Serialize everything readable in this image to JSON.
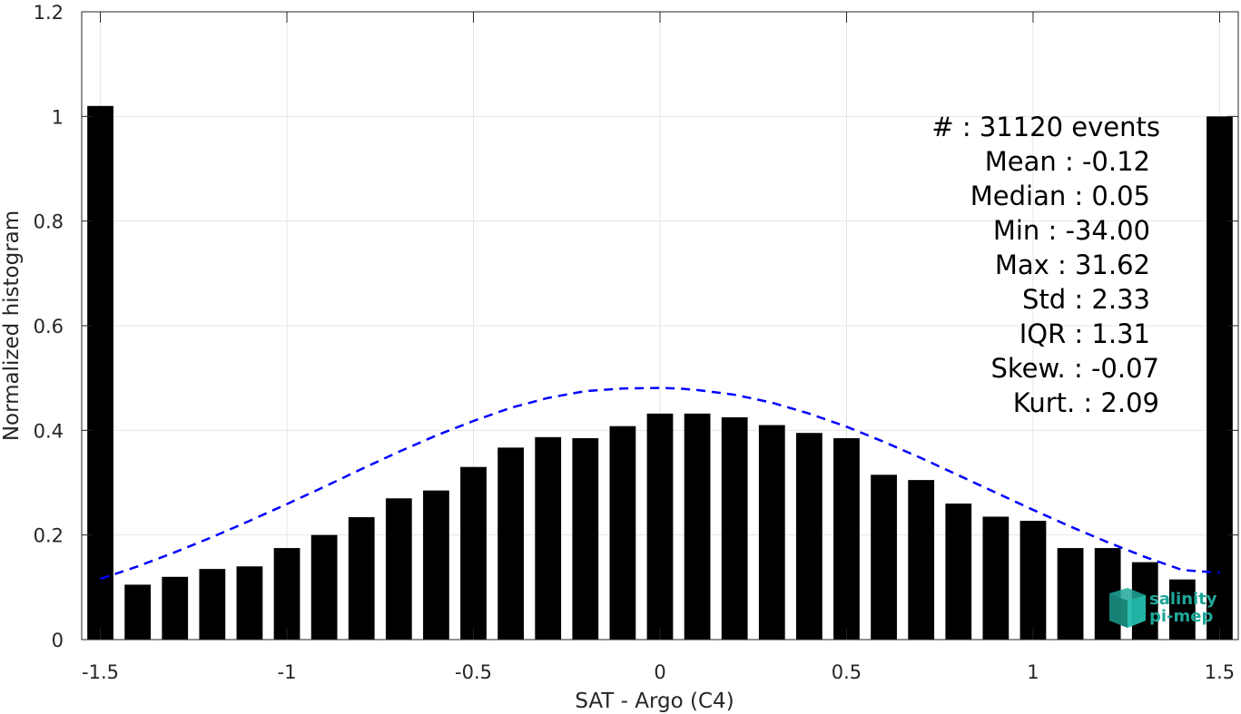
{
  "chart_data": {
    "type": "bar",
    "xlabel": "SAT - Argo (C4)",
    "ylabel": "Normalized histogram",
    "xlim": [
      -1.55,
      1.55
    ],
    "ylim": [
      0,
      1.2
    ],
    "xticks": [
      -1.5,
      -1,
      -0.5,
      0,
      0.5,
      1,
      1.5
    ],
    "xtick_labels": [
      "-1.5",
      "-1",
      "-0.5",
      "0",
      "0.5",
      "1",
      "1.5"
    ],
    "yticks": [
      0,
      0.2,
      0.4,
      0.6,
      0.8,
      1,
      1.2
    ],
    "ytick_labels": [
      "0",
      "0.2",
      "0.4",
      "0.6",
      "0.8",
      "1",
      "1.2"
    ],
    "grid": true,
    "bar_color": "#000000",
    "fit_color": "#0000ff",
    "x": [
      -1.5,
      -1.4,
      -1.3,
      -1.2,
      -1.1,
      -1.0,
      -0.9,
      -0.8,
      -0.7,
      -0.6,
      -0.5,
      -0.4,
      -0.3,
      -0.2,
      -0.1,
      0.0,
      0.1,
      0.2,
      0.3,
      0.4,
      0.5,
      0.6,
      0.7,
      0.8,
      0.9,
      1.0,
      1.1,
      1.2,
      1.3,
      1.4,
      1.5
    ],
    "values": [
      1.02,
      0.105,
      0.12,
      0.135,
      0.14,
      0.175,
      0.2,
      0.234,
      0.27,
      0.285,
      0.33,
      0.367,
      0.387,
      0.385,
      0.408,
      0.432,
      0.432,
      0.425,
      0.41,
      0.395,
      0.385,
      0.315,
      0.305,
      0.26,
      0.235,
      0.227,
      0.175,
      0.175,
      0.148,
      0.115,
      1.0
    ],
    "fit": {
      "style": "dashed",
      "x": [
        -1.5,
        -1.4,
        -1.3,
        -1.2,
        -1.1,
        -1.0,
        -0.9,
        -0.8,
        -0.7,
        -0.6,
        -0.5,
        -0.4,
        -0.3,
        -0.2,
        -0.1,
        0.0,
        0.05,
        0.1,
        0.2,
        0.3,
        0.4,
        0.5,
        0.6,
        0.7,
        0.8,
        0.9,
        1.0,
        1.1,
        1.2,
        1.3,
        1.4,
        1.5
      ],
      "y": [
        0.116,
        0.14,
        0.167,
        0.196,
        0.227,
        0.259,
        0.292,
        0.326,
        0.359,
        0.39,
        0.418,
        0.443,
        0.462,
        0.475,
        0.48,
        0.481,
        0.48,
        0.477,
        0.468,
        0.453,
        0.432,
        0.407,
        0.378,
        0.347,
        0.314,
        0.281,
        0.248,
        0.216,
        0.186,
        0.158,
        0.133,
        0.128
      ]
    },
    "annotations": [
      "#  : 31120 events",
      "Mean : -0.12",
      "Median : 0.05",
      "Min : -34.00",
      "Max : 31.62",
      "Std : 2.33",
      "IQR : 1.31",
      "Skew. : -0.07",
      "Kurt. : 2.09"
    ]
  },
  "logo": {
    "line1": "salinity",
    "line2": "pi-mep",
    "color": "#1fa89a"
  }
}
